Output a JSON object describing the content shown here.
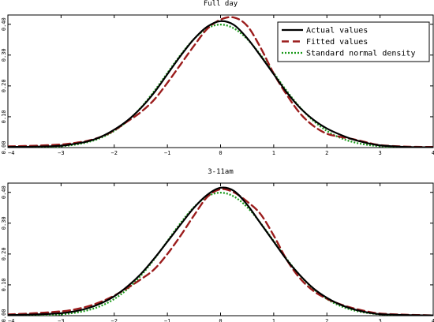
{
  "chart_data": [
    {
      "type": "line",
      "title": "Full day",
      "xlabel": "",
      "ylabel": "",
      "xlim": [
        -4,
        4
      ],
      "ylim": [
        0,
        0.43
      ],
      "xticks": [
        -4,
        -3,
        -2,
        -1,
        0,
        1,
        2,
        3,
        4
      ],
      "xtick_labels": [
        "−4",
        "−3",
        "−2",
        "−1",
        "0",
        "1",
        "2",
        "3",
        "4"
      ],
      "yticks": [
        0,
        0.1,
        0.2,
        0.3,
        0.4
      ],
      "ytick_labels": [
        "0.00",
        "0.10",
        "0.20",
        "0.30",
        "0.40"
      ],
      "grid": false,
      "legend": {
        "position": "top-right",
        "entries": [
          "Actual values",
          "Fitted values",
          "Standard normal density"
        ]
      },
      "series": [
        {
          "name": "Actual values",
          "color": "#000000",
          "style": "solid",
          "x": [
            -4,
            -3.5,
            -3,
            -2.75,
            -2.5,
            -2.25,
            -2,
            -1.75,
            -1.5,
            -1.25,
            -1,
            -0.75,
            -0.5,
            -0.25,
            0,
            0.25,
            0.5,
            0.75,
            1,
            1.25,
            1.5,
            1.75,
            2,
            2.25,
            2.5,
            2.75,
            3,
            3.5,
            4
          ],
          "y": [
            0.002,
            0.003,
            0.006,
            0.012,
            0.02,
            0.035,
            0.058,
            0.088,
            0.128,
            0.178,
            0.238,
            0.298,
            0.352,
            0.392,
            0.41,
            0.398,
            0.355,
            0.298,
            0.238,
            0.178,
            0.128,
            0.09,
            0.062,
            0.042,
            0.026,
            0.015,
            0.007,
            0.002,
            0.001
          ]
        },
        {
          "name": "Fitted values",
          "color": "#9b1c1c",
          "style": "dashed",
          "x": [
            -4,
            -3.5,
            -3,
            -2.75,
            -2.5,
            -2.25,
            -2,
            -1.75,
            -1.5,
            -1.25,
            -1,
            -0.75,
            -0.5,
            -0.25,
            0,
            0.25,
            0.5,
            0.75,
            1,
            1.25,
            1.5,
            1.75,
            2,
            2.25,
            2.5,
            2.75,
            3,
            3.5,
            4
          ],
          "y": [
            0.004,
            0.006,
            0.01,
            0.015,
            0.022,
            0.035,
            0.056,
            0.085,
            0.115,
            0.155,
            0.21,
            0.27,
            0.33,
            0.385,
            0.415,
            0.422,
            0.395,
            0.325,
            0.24,
            0.17,
            0.11,
            0.07,
            0.045,
            0.035,
            0.027,
            0.017,
            0.008,
            0.003,
            0.002
          ]
        },
        {
          "name": "Standard normal density",
          "color": "#1a9a1a",
          "style": "dotted",
          "x": [
            -4,
            -3.5,
            -3,
            -2.75,
            -2.5,
            -2.25,
            -2,
            -1.75,
            -1.5,
            -1.25,
            -1,
            -0.75,
            -0.5,
            -0.25,
            0,
            0.25,
            0.5,
            0.75,
            1,
            1.25,
            1.5,
            1.75,
            2,
            2.25,
            2.5,
            2.75,
            3,
            3.5,
            4
          ],
          "y": [
            0.0001,
            0.0009,
            0.0044,
            0.0091,
            0.0175,
            0.0317,
            0.054,
            0.0863,
            0.1295,
            0.1826,
            0.242,
            0.3011,
            0.3521,
            0.3867,
            0.3989,
            0.3867,
            0.3521,
            0.3011,
            0.242,
            0.1826,
            0.1295,
            0.0863,
            0.054,
            0.0317,
            0.0175,
            0.0091,
            0.0044,
            0.0009,
            0.0001
          ]
        }
      ]
    },
    {
      "type": "line",
      "title": "3-11am",
      "xlabel": "",
      "ylabel": "",
      "xlim": [
        -4,
        4
      ],
      "ylim": [
        0,
        0.43
      ],
      "xticks": [
        -4,
        -3,
        -2,
        -1,
        0,
        1,
        2,
        3,
        4
      ],
      "xtick_labels": [
        "−4",
        "−3",
        "−2",
        "−1",
        "0",
        "1",
        "2",
        "3",
        "4"
      ],
      "yticks": [
        0,
        0.1,
        0.2,
        0.3,
        0.4
      ],
      "ytick_labels": [
        "0.00",
        "0.10",
        "0.20",
        "0.30",
        "0.40"
      ],
      "grid": false,
      "series": [
        {
          "name": "Actual values",
          "color": "#000000",
          "style": "solid",
          "x": [
            -4,
            -3.5,
            -3,
            -2.75,
            -2.5,
            -2.25,
            -2,
            -1.75,
            -1.5,
            -1.25,
            -1,
            -0.75,
            -0.5,
            -0.25,
            0,
            0.25,
            0.5,
            0.75,
            1,
            1.25,
            1.5,
            1.75,
            2,
            2.25,
            2.5,
            2.75,
            3,
            3.5,
            4
          ],
          "y": [
            0.002,
            0.004,
            0.008,
            0.014,
            0.024,
            0.04,
            0.063,
            0.095,
            0.135,
            0.185,
            0.24,
            0.296,
            0.35,
            0.392,
            0.415,
            0.405,
            0.36,
            0.3,
            0.24,
            0.18,
            0.13,
            0.088,
            0.058,
            0.036,
            0.021,
            0.011,
            0.005,
            0.002,
            0.001
          ]
        },
        {
          "name": "Fitted values",
          "color": "#9b1c1c",
          "style": "dashed",
          "x": [
            -4,
            -3.5,
            -3,
            -2.75,
            -2.5,
            -2.25,
            -2,
            -1.75,
            -1.5,
            -1.25,
            -1,
            -0.75,
            -0.5,
            -0.25,
            0,
            0.25,
            0.5,
            0.75,
            1,
            1.25,
            1.5,
            1.75,
            2,
            2.25,
            2.5,
            2.75,
            3,
            3.5,
            4
          ],
          "y": [
            0.004,
            0.008,
            0.014,
            0.02,
            0.03,
            0.045,
            0.065,
            0.09,
            0.118,
            0.15,
            0.2,
            0.26,
            0.325,
            0.385,
            0.41,
            0.4,
            0.37,
            0.33,
            0.26,
            0.18,
            0.12,
            0.08,
            0.055,
            0.037,
            0.024,
            0.014,
            0.007,
            0.003,
            0.001
          ]
        },
        {
          "name": "Standard normal density",
          "color": "#1a9a1a",
          "style": "dotted",
          "x": [
            -4,
            -3.5,
            -3,
            -2.75,
            -2.5,
            -2.25,
            -2,
            -1.75,
            -1.5,
            -1.25,
            -1,
            -0.75,
            -0.5,
            -0.25,
            0,
            0.25,
            0.5,
            0.75,
            1,
            1.25,
            1.5,
            1.75,
            2,
            2.25,
            2.5,
            2.75,
            3,
            3.5,
            4
          ],
          "y": [
            0.0001,
            0.0009,
            0.0044,
            0.0091,
            0.0175,
            0.0317,
            0.054,
            0.0863,
            0.1295,
            0.1826,
            0.242,
            0.3011,
            0.3521,
            0.3867,
            0.3989,
            0.3867,
            0.3521,
            0.3011,
            0.242,
            0.1826,
            0.1295,
            0.0863,
            0.054,
            0.0317,
            0.0175,
            0.0091,
            0.0044,
            0.0009,
            0.0001
          ]
        }
      ]
    }
  ]
}
